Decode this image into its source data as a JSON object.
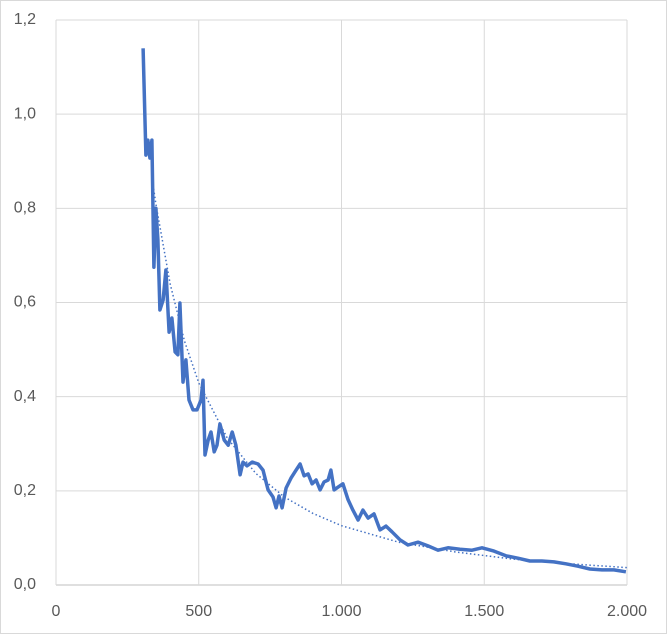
{
  "chart_data": {
    "type": "line",
    "xlim": [
      0,
      2000
    ],
    "xticks": [
      0,
      500,
      {
        "value": 1000,
        "label": "1.000"
      },
      {
        "value": 1500,
        "label": "1.500"
      },
      {
        "value": 2000,
        "label": "2.000"
      }
    ],
    "ylim": [
      0,
      1.2
    ],
    "yticks": [
      {
        "value": 0,
        "label": "0,0"
      },
      {
        "value": 0.2,
        "label": "0,2"
      },
      {
        "value": 0.4,
        "label": "0,4"
      },
      {
        "value": 0.6,
        "label": "0,6"
      },
      {
        "value": 0.8,
        "label": "0,8"
      },
      {
        "value": 1.0,
        "label": "1,0"
      },
      {
        "value": 1.2,
        "label": "1,2"
      }
    ],
    "grid": true,
    "series": [
      {
        "color": "#4472c4",
        "line_style": "solid",
        "x": [
          305,
          315,
          322,
          329,
          336,
          343,
          350,
          357,
          364,
          375,
          385,
          396,
          406,
          417,
          427,
          434,
          445,
          455,
          466,
          480,
          494,
          508,
          515,
          522,
          533,
          543,
          554,
          564,
          574,
          589,
          603,
          617,
          630,
          645,
          655,
          669,
          687,
          708,
          725,
          743,
          760,
          771,
          781,
          792,
          806,
          823,
          841,
          855,
          869,
          883,
          897,
          911,
          925,
          939,
          953,
          963,
          974,
          988,
          1005,
          1023,
          1040,
          1058,
          1075,
          1093,
          1114,
          1135,
          1156,
          1177,
          1205,
          1233,
          1268,
          1303,
          1338,
          1373,
          1415,
          1457,
          1492,
          1534,
          1576,
          1618,
          1660,
          1702,
          1744,
          1786,
          1828,
          1870,
          1912,
          1954,
          1996
        ],
        "values": [
          1.14,
          0.913,
          0.945,
          0.907,
          0.945,
          0.675,
          0.8,
          0.733,
          0.584,
          0.605,
          0.669,
          0.537,
          0.567,
          0.495,
          0.489,
          0.599,
          0.431,
          0.478,
          0.393,
          0.372,
          0.372,
          0.393,
          0.435,
          0.276,
          0.308,
          0.325,
          0.283,
          0.297,
          0.342,
          0.308,
          0.297,
          0.325,
          0.297,
          0.234,
          0.261,
          0.253,
          0.261,
          0.257,
          0.244,
          0.202,
          0.187,
          0.164,
          0.189,
          0.164,
          0.206,
          0.227,
          0.244,
          0.257,
          0.232,
          0.236,
          0.215,
          0.223,
          0.202,
          0.219,
          0.223,
          0.244,
          0.202,
          0.208,
          0.215,
          0.181,
          0.159,
          0.138,
          0.159,
          0.142,
          0.151,
          0.117,
          0.125,
          0.113,
          0.096,
          0.085,
          0.091,
          0.083,
          0.074,
          0.079,
          0.076,
          0.074,
          0.079,
          0.072,
          0.062,
          0.057,
          0.051,
          0.051,
          0.049,
          0.045,
          0.04,
          0.034,
          0.032,
          0.032,
          0.028
        ]
      },
      {
        "color": "#4472c4",
        "line_style": "dotted",
        "x": [
          340,
          350,
          400,
          450,
          500,
          600,
          700,
          800,
          900,
          1000,
          1200,
          1400,
          1600,
          1800,
          2000
        ],
        "values": [
          0.85,
          0.809,
          0.639,
          0.518,
          0.429,
          0.312,
          0.237,
          0.187,
          0.152,
          0.126,
          0.091,
          0.07,
          0.055,
          0.045,
          0.037
        ]
      }
    ]
  }
}
